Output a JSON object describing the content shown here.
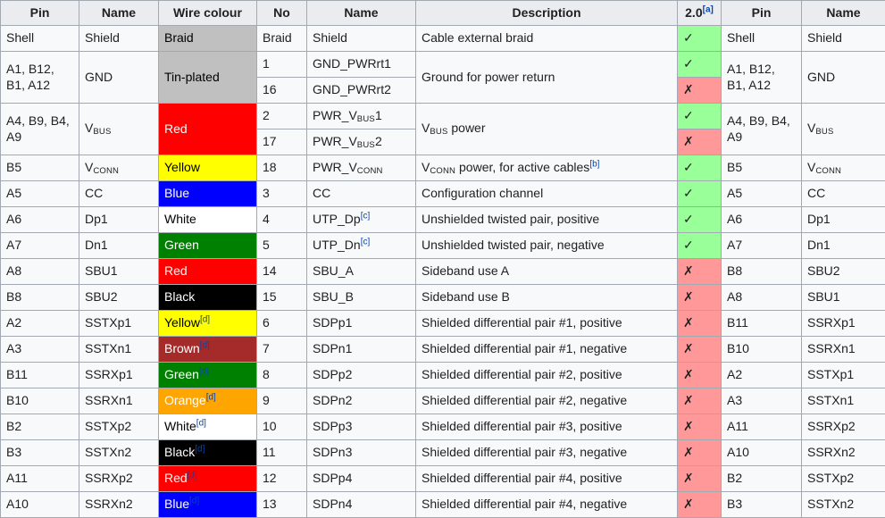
{
  "table": {
    "headers": [
      {
        "label": "Pin"
      },
      {
        "label": "Name"
      },
      {
        "label": "Wire colour"
      },
      {
        "label": "No"
      },
      {
        "label": "Name"
      },
      {
        "label": "Description"
      },
      {
        "label": "2.0",
        "sup": "[a]"
      },
      {
        "label": "Pin"
      },
      {
        "label": "Name"
      }
    ],
    "marks": {
      "yes": "✓",
      "no": "✗"
    },
    "colors": {
      "header_bg": "#eaecf0",
      "row_bg": "#f8f9fa",
      "border": "#a2a9b1",
      "yes_bg": "#99ff99",
      "no_bg": "#ff9999",
      "link": "#0645ad",
      "wire_silver": "#c0c0c0",
      "wire_red": "#ff0000",
      "wire_yellow": "#ffff00",
      "wire_blue": "#0000ff",
      "wire_white": "#ffffff",
      "wire_green": "#008000",
      "wire_black": "#000000",
      "wire_brown": "#a52a2a",
      "wire_orange": "#ffa500"
    },
    "rows": [
      {
        "cells": [
          {
            "seg": "Shell"
          },
          {
            "seg": "Shield"
          },
          {
            "seg": "Braid",
            "bg": "#c0c0c0",
            "fg": "#000000"
          },
          {
            "seg": "Braid"
          },
          {
            "seg": "Shield"
          },
          {
            "seg": "Cable external braid"
          },
          {
            "mark": "yes"
          },
          {
            "seg": "Shell"
          },
          {
            "seg": "Shield"
          }
        ]
      },
      {
        "cells": [
          {
            "seg": "A1, B12, B1, A12",
            "rowspan": 2
          },
          {
            "seg": "GND",
            "rowspan": 2
          },
          {
            "seg": "Tin-plated",
            "bg": "#c0c0c0",
            "fg": "#000000",
            "rowspan": 2
          },
          {
            "seg": "1"
          },
          {
            "seg": "GND_PWRrt1"
          },
          {
            "seg": "Ground for power return",
            "rowspan": 2
          },
          {
            "mark": "yes"
          },
          {
            "seg": "A1, B12, B1, A12",
            "rowspan": 2
          },
          {
            "seg": "GND",
            "rowspan": 2
          }
        ]
      },
      {
        "cells": [
          {
            "col": 3,
            "seg": "16"
          },
          {
            "col": 4,
            "seg": "GND_PWRrt2"
          },
          {
            "col": 6,
            "mark": "no"
          }
        ]
      },
      {
        "cells": [
          {
            "seg": "A4, B9, B4, A9",
            "rowspan": 2
          },
          {
            "seg": [
              {
                "t": "V"
              },
              {
                "t": "BUS",
                "sub": true
              }
            ],
            "rowspan": 2
          },
          {
            "seg": "Red",
            "bg": "#ff0000",
            "fg": "#ffffff",
            "rowspan": 2
          },
          {
            "seg": "2"
          },
          {
            "seg": [
              {
                "t": "PWR_V"
              },
              {
                "t": "BUS",
                "sub": true
              },
              {
                "t": "1"
              }
            ]
          },
          {
            "seg": [
              {
                "t": "V"
              },
              {
                "t": "BUS",
                "sub": true
              },
              {
                "t": " power"
              }
            ],
            "rowspan": 2
          },
          {
            "mark": "yes"
          },
          {
            "seg": "A4, B9, B4, A9",
            "rowspan": 2
          },
          {
            "seg": [
              {
                "t": "V"
              },
              {
                "t": "BUS",
                "sub": true
              }
            ],
            "rowspan": 2
          }
        ]
      },
      {
        "cells": [
          {
            "col": 3,
            "seg": "17"
          },
          {
            "col": 4,
            "seg": [
              {
                "t": "PWR_V"
              },
              {
                "t": "BUS",
                "sub": true
              },
              {
                "t": "2"
              }
            ]
          },
          {
            "col": 6,
            "mark": "no"
          }
        ]
      },
      {
        "cells": [
          {
            "seg": "B5"
          },
          {
            "seg": [
              {
                "t": "V"
              },
              {
                "t": "CONN",
                "sub": true
              }
            ]
          },
          {
            "seg": "Yellow",
            "bg": "#ffff00",
            "fg": "#000000"
          },
          {
            "seg": "18"
          },
          {
            "seg": [
              {
                "t": "PWR_V"
              },
              {
                "t": "CONN",
                "sub": true
              }
            ]
          },
          {
            "seg": [
              {
                "t": "V"
              },
              {
                "t": "CONN",
                "sub": true
              },
              {
                "t": " power, for active cables"
              },
              {
                "t": "[b]",
                "sup": true
              }
            ]
          },
          {
            "mark": "yes"
          },
          {
            "seg": "B5"
          },
          {
            "seg": [
              {
                "t": "V"
              },
              {
                "t": "CONN",
                "sub": true
              }
            ]
          }
        ]
      },
      {
        "cells": [
          {
            "seg": "A5"
          },
          {
            "seg": "CC"
          },
          {
            "seg": "Blue",
            "bg": "#0000ff",
            "fg": "#ffffff"
          },
          {
            "seg": "3"
          },
          {
            "seg": "CC"
          },
          {
            "seg": "Configuration channel"
          },
          {
            "mark": "yes"
          },
          {
            "seg": "A5"
          },
          {
            "seg": "CC"
          }
        ]
      },
      {
        "cells": [
          {
            "seg": "A6"
          },
          {
            "seg": "Dp1"
          },
          {
            "seg": "White",
            "bg": "#ffffff",
            "fg": "#000000"
          },
          {
            "seg": "4"
          },
          {
            "seg": [
              {
                "t": "UTP_Dp"
              },
              {
                "t": "[c]",
                "sup": true
              }
            ]
          },
          {
            "seg": "Unshielded twisted pair, positive"
          },
          {
            "mark": "yes"
          },
          {
            "seg": "A6"
          },
          {
            "seg": "Dp1"
          }
        ]
      },
      {
        "cells": [
          {
            "seg": "A7"
          },
          {
            "seg": "Dn1"
          },
          {
            "seg": "Green",
            "bg": "#008000",
            "fg": "#ffffff"
          },
          {
            "seg": "5"
          },
          {
            "seg": [
              {
                "t": "UTP_Dn"
              },
              {
                "t": "[c]",
                "sup": true
              }
            ]
          },
          {
            "seg": "Unshielded twisted pair, negative"
          },
          {
            "mark": "yes"
          },
          {
            "seg": "A7"
          },
          {
            "seg": "Dn1"
          }
        ]
      },
      {
        "cells": [
          {
            "seg": "A8"
          },
          {
            "seg": "SBU1"
          },
          {
            "seg": "Red",
            "bg": "#ff0000",
            "fg": "#ffffff"
          },
          {
            "seg": "14"
          },
          {
            "seg": "SBU_A"
          },
          {
            "seg": "Sideband use A"
          },
          {
            "mark": "no"
          },
          {
            "seg": "B8"
          },
          {
            "seg": "SBU2"
          }
        ]
      },
      {
        "cells": [
          {
            "seg": "B8"
          },
          {
            "seg": "SBU2"
          },
          {
            "seg": "Black",
            "bg": "#000000",
            "fg": "#ffffff"
          },
          {
            "seg": "15"
          },
          {
            "seg": "SBU_B"
          },
          {
            "seg": "Sideband use B"
          },
          {
            "mark": "no"
          },
          {
            "seg": "A8"
          },
          {
            "seg": "SBU1"
          }
        ]
      },
      {
        "cells": [
          {
            "seg": "A2"
          },
          {
            "seg": "SSTXp1"
          },
          {
            "seg": [
              {
                "t": "Yellow"
              },
              {
                "t": "[d]",
                "sup": true
              }
            ],
            "bg": "#ffff00",
            "fg": "#000000"
          },
          {
            "seg": "6"
          },
          {
            "seg": "SDPp1"
          },
          {
            "seg": "Shielded differential pair #1, positive"
          },
          {
            "mark": "no"
          },
          {
            "seg": "B11"
          },
          {
            "seg": "SSRXp1"
          }
        ]
      },
      {
        "cells": [
          {
            "seg": "A3"
          },
          {
            "seg": "SSTXn1"
          },
          {
            "seg": [
              {
                "t": "Brown"
              },
              {
                "t": "[d]",
                "sup": true
              }
            ],
            "bg": "#a52a2a",
            "fg": "#ffffff"
          },
          {
            "seg": "7"
          },
          {
            "seg": "SDPn1"
          },
          {
            "seg": "Shielded differential pair #1, negative"
          },
          {
            "mark": "no"
          },
          {
            "seg": "B10"
          },
          {
            "seg": "SSRXn1"
          }
        ]
      },
      {
        "cells": [
          {
            "seg": "B11"
          },
          {
            "seg": "SSRXp1"
          },
          {
            "seg": [
              {
                "t": "Green"
              },
              {
                "t": "[d]",
                "sup": true
              }
            ],
            "bg": "#008000",
            "fg": "#ffffff"
          },
          {
            "seg": "8"
          },
          {
            "seg": "SDPp2"
          },
          {
            "seg": "Shielded differential pair #2, positive"
          },
          {
            "mark": "no"
          },
          {
            "seg": "A2"
          },
          {
            "seg": "SSTXp1"
          }
        ]
      },
      {
        "cells": [
          {
            "seg": "B10"
          },
          {
            "seg": "SSRXn1"
          },
          {
            "seg": [
              {
                "t": "Orange"
              },
              {
                "t": "[d]",
                "sup": true
              }
            ],
            "bg": "#ffa500",
            "fg": "#ffffff"
          },
          {
            "seg": "9"
          },
          {
            "seg": "SDPn2"
          },
          {
            "seg": "Shielded differential pair #2, negative"
          },
          {
            "mark": "no"
          },
          {
            "seg": "A3"
          },
          {
            "seg": "SSTXn1"
          }
        ]
      },
      {
        "cells": [
          {
            "seg": "B2"
          },
          {
            "seg": "SSTXp2"
          },
          {
            "seg": [
              {
                "t": "White"
              },
              {
                "t": "[d]",
                "sup": true
              }
            ],
            "bg": "#ffffff",
            "fg": "#000000"
          },
          {
            "seg": "10"
          },
          {
            "seg": "SDPp3"
          },
          {
            "seg": "Shielded differential pair #3, positive"
          },
          {
            "mark": "no"
          },
          {
            "seg": "A11"
          },
          {
            "seg": "SSRXp2"
          }
        ]
      },
      {
        "cells": [
          {
            "seg": "B3"
          },
          {
            "seg": "SSTXn2"
          },
          {
            "seg": [
              {
                "t": "Black"
              },
              {
                "t": "[d]",
                "sup": true
              }
            ],
            "bg": "#000000",
            "fg": "#ffffff"
          },
          {
            "seg": "11"
          },
          {
            "seg": "SDPn3"
          },
          {
            "seg": "Shielded differential pair #3, negative"
          },
          {
            "mark": "no"
          },
          {
            "seg": "A10"
          },
          {
            "seg": "SSRXn2"
          }
        ]
      },
      {
        "cells": [
          {
            "seg": "A11"
          },
          {
            "seg": "SSRXp2"
          },
          {
            "seg": [
              {
                "t": "Red"
              },
              {
                "t": "[d]",
                "sup": true
              }
            ],
            "bg": "#ff0000",
            "fg": "#ffffff"
          },
          {
            "seg": "12"
          },
          {
            "seg": "SDPp4"
          },
          {
            "seg": "Shielded differential pair #4, positive"
          },
          {
            "mark": "no"
          },
          {
            "seg": "B2"
          },
          {
            "seg": "SSTXp2"
          }
        ]
      },
      {
        "cells": [
          {
            "seg": "A10"
          },
          {
            "seg": "SSRXn2"
          },
          {
            "seg": [
              {
                "t": "Blue"
              },
              {
                "t": "[d]",
                "sup": true
              }
            ],
            "bg": "#0000ff",
            "fg": "#ffffff"
          },
          {
            "seg": "13"
          },
          {
            "seg": "SDPn4"
          },
          {
            "seg": "Shielded differential pair #4, negative"
          },
          {
            "mark": "no"
          },
          {
            "seg": "B3"
          },
          {
            "seg": "SSTXn2"
          }
        ]
      }
    ]
  }
}
